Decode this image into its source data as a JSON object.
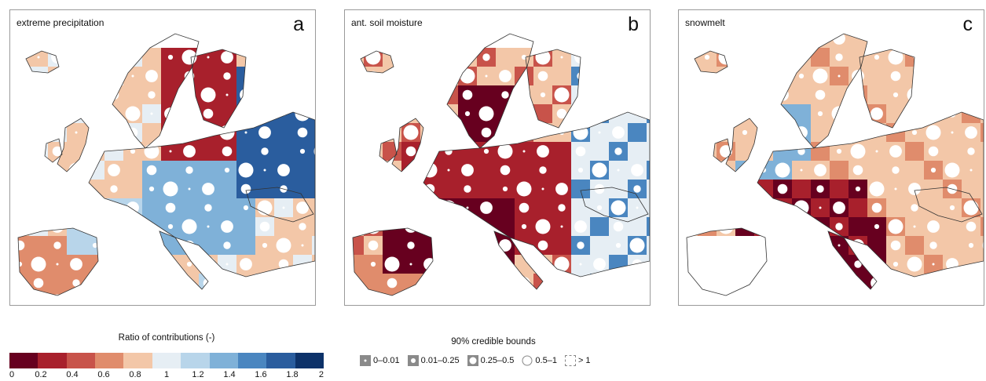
{
  "panels": [
    {
      "title": "extreme precipitation",
      "letter": "a"
    },
    {
      "title": "ant. soil moisture",
      "letter": "b"
    },
    {
      "title": "snowmelt",
      "letter": "c"
    }
  ],
  "colorbar": {
    "title": "Ratio of contributions (-)",
    "ticks": [
      "0",
      "0.2",
      "0.4",
      "0.6",
      "0.8",
      "1",
      "1.2",
      "1.4",
      "1.6",
      "1.8",
      "2"
    ],
    "colors": [
      "#67001f",
      "#a8202c",
      "#c8534a",
      "#e08c6c",
      "#f3c7a8",
      "#e6eef4",
      "#b8d5ea",
      "#7fb1d8",
      "#4a86c0",
      "#2a5d9e",
      "#0d3269"
    ]
  },
  "credible_bounds": {
    "title": "90% credible bounds",
    "items": [
      {
        "label": "0–0.01"
      },
      {
        "label": "0.01–0.25"
      },
      {
        "label": "0.25–0.5"
      },
      {
        "label": "0.5–1"
      },
      {
        "label": "> 1"
      }
    ]
  }
}
